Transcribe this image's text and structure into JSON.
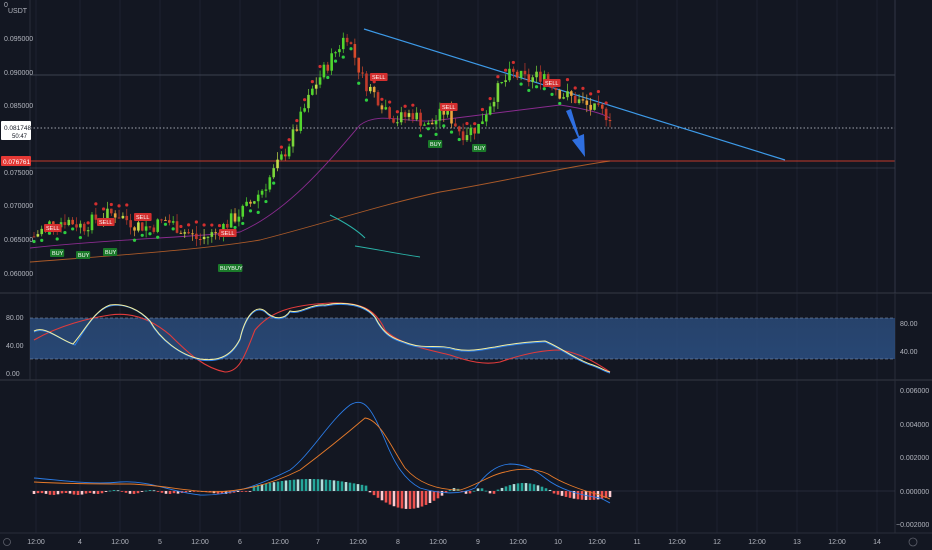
{
  "main_axis": {
    "currency": "USDT",
    "ticks": [
      "0.095000",
      "0.090000",
      "0.085000",
      "0.075000",
      "0.070000",
      "0.065000",
      "0.060000"
    ],
    "last_price": "0.081748",
    "countdown": "50:47",
    "support_price": "0.076761"
  },
  "stoch_axis": {
    "left_ticks": [
      "80.00",
      "40.00",
      "0.00"
    ],
    "right_ticks": [
      "80.00",
      "40.00"
    ]
  },
  "macd_axis": {
    "ticks": [
      "0.006000",
      "0.004000",
      "0.002000",
      "0.000000",
      "−0.002000"
    ]
  },
  "time_axis": {
    "labels": [
      "12:00",
      "4",
      "12:00",
      "5",
      "12:00",
      "6",
      "12:00",
      "7",
      "12:00",
      "8",
      "12:00",
      "9",
      "12:00",
      "10",
      "12:00",
      "11",
      "12:00",
      "12",
      "12:00",
      "13",
      "12:00",
      "14"
    ]
  },
  "signals": {
    "sell": "SELL",
    "buy": "BUY",
    "buy_buy": "BUYBUY"
  },
  "chart_data": [
    {
      "type": "candlestick",
      "ylim": [
        0.058,
        0.098
      ],
      "approx_close_path": [
        0.0635,
        0.0655,
        0.066,
        0.065,
        0.0665,
        0.067,
        0.0655,
        0.0648,
        0.066,
        0.0645,
        0.063,
        0.064,
        0.066,
        0.068,
        0.071,
        0.075,
        0.08,
        0.086,
        0.09,
        0.094,
        0.087,
        0.084,
        0.081,
        0.082,
        0.08,
        0.0825,
        0.079,
        0.08,
        0.085,
        0.088,
        0.087,
        0.088,
        0.085,
        0.084,
        0.0825,
        0.0817
      ],
      "resistance_trendline": [
        0.096,
        0.077
      ],
      "support_level": 0.076761
    },
    {
      "type": "line",
      "title_note": "stochastic oscillator",
      "ylim": [
        0,
        100
      ],
      "band": [
        20,
        80
      ],
      "series": [
        {
          "values": [
            50,
            55,
            70,
            75,
            78,
            70,
            60,
            40,
            30,
            45,
            78,
            80,
            84,
            86,
            84,
            80,
            50,
            45,
            44,
            42,
            40,
            38,
            35,
            25,
            10
          ]
        },
        {
          "values": [
            30,
            45,
            60,
            70,
            75,
            72,
            58,
            35,
            20,
            40,
            76,
            78,
            82,
            84,
            82,
            78,
            60,
            40,
            35,
            30,
            28,
            33,
            38,
            30,
            10
          ]
        }
      ]
    },
    {
      "type": "bar",
      "title_note": "macd histogram",
      "ylim": [
        -0.0025,
        0.0065
      ]
    }
  ]
}
